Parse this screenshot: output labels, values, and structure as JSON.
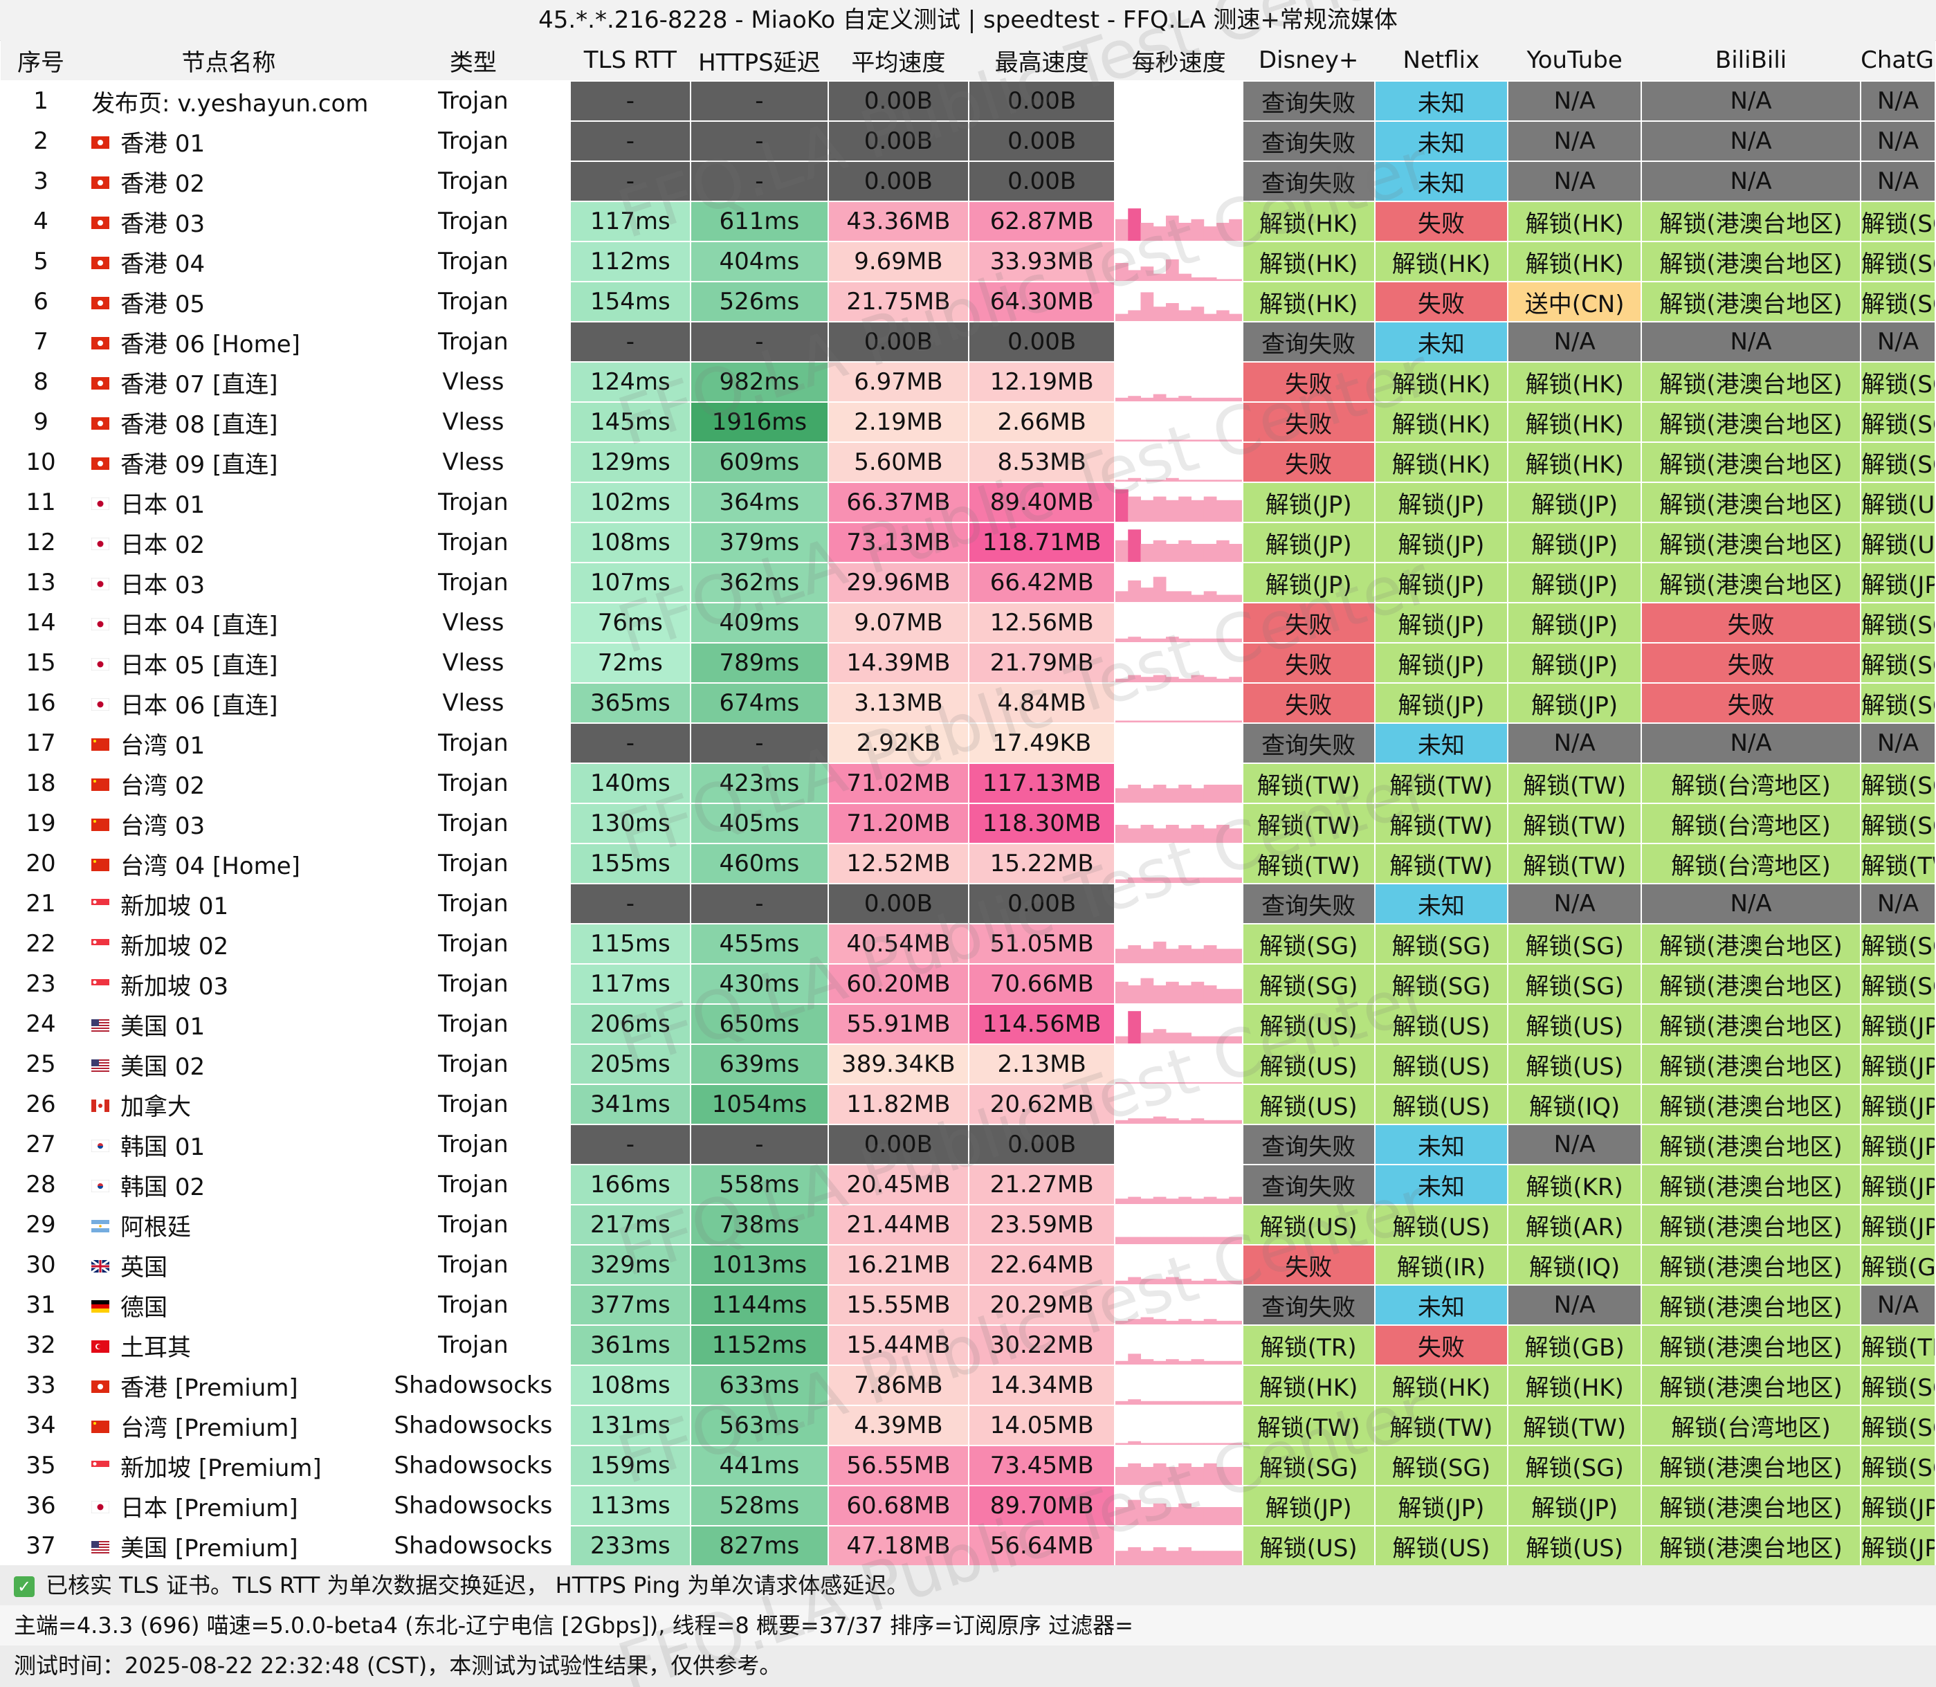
{
  "title": "45.*.*.216-8228 - MiaoKo 自定义测试 | speedtest - FFQ.LA 测速+常规流媒体",
  "watermark": "FFQ.LA Public Test Center",
  "columns": [
    "序号",
    "节点名称",
    "类型",
    "TLS RTT",
    "HTTPS延迟",
    "平均速度",
    "最高速度",
    "每秒速度",
    "Disney+",
    "Netflix",
    "YouTube",
    "BiliBili",
    "ChatGPT"
  ],
  "rows": [
    {
      "idx": "1",
      "flag": "none",
      "name": "发布页: v.yeshayun.com",
      "type": "Trojan",
      "tls": "-",
      "https": "-",
      "avg": "0.00B",
      "max": "0.00B",
      "spark": [],
      "disney": "查询失败",
      "netflix": "未知",
      "youtube": "N/A",
      "bili": "N/A",
      "gpt": "N/A"
    },
    {
      "idx": "2",
      "flag": "hk",
      "name": "香港 01",
      "type": "Trojan",
      "tls": "-",
      "https": "-",
      "avg": "0.00B",
      "max": "0.00B",
      "spark": [],
      "disney": "查询失败",
      "netflix": "未知",
      "youtube": "N/A",
      "bili": "N/A",
      "gpt": "N/A"
    },
    {
      "idx": "3",
      "flag": "hk",
      "name": "香港 02",
      "type": "Trojan",
      "tls": "-",
      "https": "-",
      "avg": "0.00B",
      "max": "0.00B",
      "spark": [],
      "disney": "查询失败",
      "netflix": "未知",
      "youtube": "N/A",
      "bili": "N/A",
      "gpt": "N/A"
    },
    {
      "idx": "4",
      "flag": "hk",
      "name": "香港 03",
      "type": "Trojan",
      "tls": "117ms",
      "https": "611ms",
      "avg": "43.36MB",
      "max": "62.87MB",
      "spark": [
        0.6,
        0.9,
        0.5,
        0.4,
        0.7,
        0.5,
        0.6,
        0.4,
        0.5,
        0.6
      ],
      "disney": "解锁(HK)",
      "netflix": "失败",
      "youtube": "解锁(HK)",
      "bili": "解锁(港澳台地区)",
      "gpt": "解锁(SG)"
    },
    {
      "idx": "5",
      "flag": "hk",
      "name": "香港 04",
      "type": "Trojan",
      "tls": "112ms",
      "https": "404ms",
      "avg": "9.69MB",
      "max": "33.93MB",
      "spark": [
        0.5,
        0.3,
        0.4,
        0.2,
        0.6,
        0.2,
        0.1,
        0.1,
        0.05,
        0.05
      ],
      "disney": "解锁(HK)",
      "netflix": "解锁(HK)",
      "youtube": "解锁(HK)",
      "bili": "解锁(港澳台地区)",
      "gpt": "解锁(SG)"
    },
    {
      "idx": "6",
      "flag": "hk",
      "name": "香港 05",
      "type": "Trojan",
      "tls": "154ms",
      "https": "526ms",
      "avg": "21.75MB",
      "max": "64.30MB",
      "spark": [
        0.2,
        0.3,
        0.8,
        0.4,
        0.5,
        0.3,
        0.4,
        0.2,
        0.3,
        0.2
      ],
      "disney": "解锁(HK)",
      "netflix": "失败",
      "youtube": "送中(CN)",
      "bili": "解锁(港澳台地区)",
      "gpt": "解锁(SG)"
    },
    {
      "idx": "7",
      "flag": "hk",
      "name": "香港 06 [Home]",
      "type": "Trojan",
      "tls": "-",
      "https": "-",
      "avg": "0.00B",
      "max": "0.00B",
      "spark": [],
      "disney": "查询失败",
      "netflix": "未知",
      "youtube": "N/A",
      "bili": "N/A",
      "gpt": "N/A"
    },
    {
      "idx": "8",
      "flag": "hk",
      "name": "香港 07 [直连]",
      "type": "Vless",
      "tls": "124ms",
      "https": "982ms",
      "avg": "6.97MB",
      "max": "12.19MB",
      "spark": [
        0.1,
        0.15,
        0.1,
        0.2,
        0.1,
        0.15,
        0.1,
        0.1,
        0.1,
        0.1
      ],
      "disney": "失败",
      "netflix": "解锁(HK)",
      "youtube": "解锁(HK)",
      "bili": "解锁(港澳台地区)",
      "gpt": "解锁(SG)"
    },
    {
      "idx": "9",
      "flag": "hk",
      "name": "香港 08 [直连]",
      "type": "Vless",
      "tls": "145ms",
      "https": "1916ms",
      "avg": "2.19MB",
      "max": "2.66MB",
      "spark": [
        0.05,
        0.05,
        0.05,
        0.05,
        0.05,
        0.05,
        0.05,
        0.05,
        0.05,
        0.05
      ],
      "disney": "失败",
      "netflix": "解锁(HK)",
      "youtube": "解锁(HK)",
      "bili": "解锁(港澳台地区)",
      "gpt": "解锁(SG)"
    },
    {
      "idx": "10",
      "flag": "hk",
      "name": "香港 09 [直连]",
      "type": "Vless",
      "tls": "129ms",
      "https": "609ms",
      "avg": "5.60MB",
      "max": "8.53MB",
      "spark": [
        0.05,
        0.1,
        0.05,
        0.05,
        0.1,
        0.05,
        0.05,
        0.05,
        0.05,
        0.05
      ],
      "disney": "失败",
      "netflix": "解锁(HK)",
      "youtube": "解锁(HK)",
      "bili": "解锁(港澳台地区)",
      "gpt": "解锁(SG)"
    },
    {
      "idx": "11",
      "flag": "jp",
      "name": "日本 01",
      "type": "Trojan",
      "tls": "102ms",
      "https": "364ms",
      "avg": "66.37MB",
      "max": "89.40MB",
      "spark": [
        0.9,
        0.7,
        0.6,
        0.7,
        0.6,
        0.7,
        0.6,
        0.7,
        0.6,
        0.6
      ],
      "disney": "解锁(JP)",
      "netflix": "解锁(JP)",
      "youtube": "解锁(JP)",
      "bili": "解锁(港澳台地区)",
      "gpt": "解锁(US)"
    },
    {
      "idx": "12",
      "flag": "jp",
      "name": "日本 02",
      "type": "Trojan",
      "tls": "108ms",
      "https": "379ms",
      "avg": "73.13MB",
      "max": "118.71MB",
      "spark": [
        0.6,
        0.9,
        0.5,
        0.6,
        0.5,
        0.6,
        0.5,
        0.5,
        0.6,
        0.5
      ],
      "disney": "解锁(JP)",
      "netflix": "解锁(JP)",
      "youtube": "解锁(JP)",
      "bili": "解锁(港澳台地区)",
      "gpt": "解锁(US)"
    },
    {
      "idx": "13",
      "flag": "jp",
      "name": "日本 03",
      "type": "Trojan",
      "tls": "107ms",
      "https": "362ms",
      "avg": "29.96MB",
      "max": "66.42MB",
      "spark": [
        0.3,
        0.6,
        0.4,
        0.7,
        0.3,
        0.3,
        0.2,
        0.3,
        0.2,
        0.2
      ],
      "disney": "解锁(JP)",
      "netflix": "解锁(JP)",
      "youtube": "解锁(JP)",
      "bili": "解锁(港澳台地区)",
      "gpt": "解锁(JP)"
    },
    {
      "idx": "14",
      "flag": "jp",
      "name": "日本 04 [直连]",
      "type": "Vless",
      "tls": "76ms",
      "https": "409ms",
      "avg": "9.07MB",
      "max": "12.56MB",
      "spark": [
        0.1,
        0.15,
        0.1,
        0.1,
        0.15,
        0.1,
        0.1,
        0.1,
        0.1,
        0.1
      ],
      "disney": "失败",
      "netflix": "解锁(JP)",
      "youtube": "解锁(JP)",
      "bili": "失败",
      "gpt": "解锁(SG)"
    },
    {
      "idx": "15",
      "flag": "jp",
      "name": "日本 05 [直连]",
      "type": "Vless",
      "tls": "72ms",
      "https": "789ms",
      "avg": "14.39MB",
      "max": "21.79MB",
      "spark": [
        0.1,
        0.2,
        0.15,
        0.2,
        0.15,
        0.1,
        0.2,
        0.15,
        0.1,
        0.15
      ],
      "disney": "失败",
      "netflix": "解锁(JP)",
      "youtube": "解锁(JP)",
      "bili": "失败",
      "gpt": "解锁(SG)"
    },
    {
      "idx": "16",
      "flag": "jp",
      "name": "日本 06 [直连]",
      "type": "Vless",
      "tls": "365ms",
      "https": "674ms",
      "avg": "3.13MB",
      "max": "4.84MB",
      "spark": [
        0.05,
        0.05,
        0.05,
        0.05,
        0.05,
        0.05,
        0.05,
        0.05,
        0.05,
        0.05
      ],
      "disney": "失败",
      "netflix": "解锁(JP)",
      "youtube": "解锁(JP)",
      "bili": "失败",
      "gpt": "解锁(SG)"
    },
    {
      "idx": "17",
      "flag": "tw",
      "name": "台湾 01",
      "type": "Trojan",
      "tls": "-",
      "https": "-",
      "avg": "2.92KB",
      "max": "17.49KB",
      "spark": [],
      "disney": "查询失败",
      "netflix": "未知",
      "youtube": "N/A",
      "bili": "N/A",
      "gpt": "N/A"
    },
    {
      "idx": "18",
      "flag": "tw",
      "name": "台湾 02",
      "type": "Trojan",
      "tls": "140ms",
      "https": "423ms",
      "avg": "71.02MB",
      "max": "117.13MB",
      "spark": [
        0.4,
        0.5,
        0.4,
        0.5,
        0.4,
        0.5,
        0.4,
        0.5,
        0.5,
        0.5
      ],
      "disney": "解锁(TW)",
      "netflix": "解锁(TW)",
      "youtube": "解锁(TW)",
      "bili": "解锁(台湾地区)",
      "gpt": "解锁(SG)"
    },
    {
      "idx": "19",
      "flag": "tw",
      "name": "台湾 03",
      "type": "Trojan",
      "tls": "130ms",
      "https": "405ms",
      "avg": "71.20MB",
      "max": "118.30MB",
      "spark": [
        0.5,
        0.4,
        0.5,
        0.4,
        0.5,
        0.4,
        0.5,
        0.4,
        0.5,
        0.4
      ],
      "disney": "解锁(TW)",
      "netflix": "解锁(TW)",
      "youtube": "解锁(TW)",
      "bili": "解锁(台湾地区)",
      "gpt": "解锁(SG)"
    },
    {
      "idx": "20",
      "flag": "tw",
      "name": "台湾 04 [Home]",
      "type": "Trojan",
      "tls": "155ms",
      "https": "460ms",
      "avg": "12.52MB",
      "max": "15.22MB",
      "spark": [
        0.1,
        0.15,
        0.15,
        0.15,
        0.15,
        0.15,
        0.15,
        0.15,
        0.15,
        0.15
      ],
      "disney": "解锁(TW)",
      "netflix": "解锁(TW)",
      "youtube": "解锁(TW)",
      "bili": "解锁(台湾地区)",
      "gpt": "解锁(TW)"
    },
    {
      "idx": "21",
      "flag": "sg",
      "name": "新加坡 01",
      "type": "Trojan",
      "tls": "-",
      "https": "-",
      "avg": "0.00B",
      "max": "0.00B",
      "spark": [],
      "disney": "查询失败",
      "netflix": "未知",
      "youtube": "N/A",
      "bili": "N/A",
      "gpt": "N/A"
    },
    {
      "idx": "22",
      "flag": "sg",
      "name": "新加坡 02",
      "type": "Trojan",
      "tls": "115ms",
      "https": "455ms",
      "avg": "40.54MB",
      "max": "51.05MB",
      "spark": [
        0.4,
        0.5,
        0.4,
        0.6,
        0.4,
        0.5,
        0.4,
        0.5,
        0.4,
        0.4
      ],
      "disney": "解锁(SG)",
      "netflix": "解锁(SG)",
      "youtube": "解锁(SG)",
      "bili": "解锁(港澳台地区)",
      "gpt": "解锁(SG)"
    },
    {
      "idx": "23",
      "flag": "sg",
      "name": "新加坡 03",
      "type": "Trojan",
      "tls": "117ms",
      "https": "430ms",
      "avg": "60.20MB",
      "max": "70.66MB",
      "spark": [
        0.6,
        0.5,
        0.7,
        0.5,
        0.6,
        0.5,
        0.6,
        0.5,
        0.4,
        0.4
      ],
      "disney": "解锁(SG)",
      "netflix": "解锁(SG)",
      "youtube": "解锁(SG)",
      "bili": "解锁(港澳台地区)",
      "gpt": "解锁(SG)"
    },
    {
      "idx": "24",
      "flag": "us",
      "name": "美国 01",
      "type": "Trojan",
      "tls": "206ms",
      "https": "650ms",
      "avg": "55.91MB",
      "max": "114.56MB",
      "spark": [
        0.2,
        0.9,
        0.3,
        0.4,
        0.3,
        0.3,
        0.2,
        0.2,
        0.2,
        0.2
      ],
      "disney": "解锁(US)",
      "netflix": "解锁(US)",
      "youtube": "解锁(US)",
      "bili": "解锁(港澳台地区)",
      "gpt": "解锁(JP)"
    },
    {
      "idx": "25",
      "flag": "us",
      "name": "美国 02",
      "type": "Trojan",
      "tls": "205ms",
      "https": "639ms",
      "avg": "389.34KB",
      "max": "2.13MB",
      "spark": [
        0.02,
        0.02,
        0.02,
        0.02,
        0.02,
        0.02,
        0.02,
        0.02,
        0.02,
        0.02
      ],
      "disney": "解锁(US)",
      "netflix": "解锁(US)",
      "youtube": "解锁(US)",
      "bili": "解锁(港澳台地区)",
      "gpt": "解锁(JP)"
    },
    {
      "idx": "26",
      "flag": "ca",
      "name": "加拿大",
      "type": "Trojan",
      "tls": "341ms",
      "https": "1054ms",
      "avg": "11.82MB",
      "max": "20.62MB",
      "spark": [
        0.1,
        0.15,
        0.15,
        0.2,
        0.15,
        0.1,
        0.15,
        0.1,
        0.1,
        0.1
      ],
      "disney": "解锁(US)",
      "netflix": "解锁(US)",
      "youtube": "解锁(IQ)",
      "bili": "解锁(港澳台地区)",
      "gpt": "解锁(JP)"
    },
    {
      "idx": "27",
      "flag": "kr",
      "name": "韩国 01",
      "type": "Trojan",
      "tls": "-",
      "https": "-",
      "avg": "0.00B",
      "max": "0.00B",
      "spark": [],
      "disney": "查询失败",
      "netflix": "未知",
      "youtube": "N/A",
      "bili": "解锁(港澳台地区)",
      "gpt": "解锁(JP)"
    },
    {
      "idx": "28",
      "flag": "kr",
      "name": "韩国 02",
      "type": "Trojan",
      "tls": "166ms",
      "https": "558ms",
      "avg": "20.45MB",
      "max": "21.27MB",
      "spark": [
        0.15,
        0.2,
        0.15,
        0.2,
        0.15,
        0.2,
        0.15,
        0.2,
        0.15,
        0.2
      ],
      "disney": "查询失败",
      "netflix": "未知",
      "youtube": "解锁(KR)",
      "bili": "解锁(港澳台地区)",
      "gpt": "解锁(JP)"
    },
    {
      "idx": "29",
      "flag": "ar",
      "name": "阿根廷",
      "type": "Trojan",
      "tls": "217ms",
      "https": "738ms",
      "avg": "21.44MB",
      "max": "23.59MB",
      "spark": [
        0.2,
        0.2,
        0.2,
        0.2,
        0.2,
        0.2,
        0.2,
        0.2,
        0.2,
        0.2
      ],
      "disney": "解锁(US)",
      "netflix": "解锁(US)",
      "youtube": "解锁(AR)",
      "bili": "解锁(港澳台地区)",
      "gpt": "解锁(JP)"
    },
    {
      "idx": "30",
      "flag": "gb",
      "name": "英国",
      "type": "Trojan",
      "tls": "329ms",
      "https": "1013ms",
      "avg": "16.21MB",
      "max": "22.64MB",
      "spark": [
        0.1,
        0.2,
        0.15,
        0.15,
        0.2,
        0.15,
        0.1,
        0.15,
        0.1,
        0.1
      ],
      "disney": "失败",
      "netflix": "解锁(IR)",
      "youtube": "解锁(IQ)",
      "bili": "解锁(港澳台地区)",
      "gpt": "解锁(GB)"
    },
    {
      "idx": "31",
      "flag": "de",
      "name": "德国",
      "type": "Trojan",
      "tls": "377ms",
      "https": "1144ms",
      "avg": "15.55MB",
      "max": "20.29MB",
      "spark": [
        0.1,
        0.15,
        0.2,
        0.15,
        0.1,
        0.15,
        0.1,
        0.15,
        0.1,
        0.1
      ],
      "disney": "查询失败",
      "netflix": "未知",
      "youtube": "N/A",
      "bili": "解锁(港澳台地区)",
      "gpt": "N/A"
    },
    {
      "idx": "32",
      "flag": "tr",
      "name": "土耳其",
      "type": "Trojan",
      "tls": "361ms",
      "https": "1152ms",
      "avg": "15.44MB",
      "max": "30.22MB",
      "spark": [
        0.1,
        0.3,
        0.15,
        0.1,
        0.15,
        0.1,
        0.15,
        0.1,
        0.1,
        0.1
      ],
      "disney": "解锁(TR)",
      "netflix": "失败",
      "youtube": "解锁(GB)",
      "bili": "解锁(港澳台地区)",
      "gpt": "解锁(TR)"
    },
    {
      "idx": "33",
      "flag": "hk",
      "name": "香港 [Premium]",
      "type": "Shadowsocks",
      "tls": "108ms",
      "https": "633ms",
      "avg": "7.86MB",
      "max": "14.34MB",
      "spark": [
        0.1,
        0.15,
        0.1,
        0.1,
        0.1,
        0.1,
        0.1,
        0.1,
        0.1,
        0.1
      ],
      "disney": "解锁(HK)",
      "netflix": "解锁(HK)",
      "youtube": "解锁(HK)",
      "bili": "解锁(港澳台地区)",
      "gpt": "解锁(SG)"
    },
    {
      "idx": "34",
      "flag": "tw",
      "name": "台湾 [Premium]",
      "type": "Shadowsocks",
      "tls": "131ms",
      "https": "563ms",
      "avg": "4.39MB",
      "max": "14.05MB",
      "spark": [
        0.05,
        0.1,
        0.05,
        0.05,
        0.05,
        0.05,
        0.05,
        0.05,
        0.05,
        0.05
      ],
      "disney": "解锁(TW)",
      "netflix": "解锁(TW)",
      "youtube": "解锁(TW)",
      "bili": "解锁(台湾地区)",
      "gpt": "解锁(SG)"
    },
    {
      "idx": "35",
      "flag": "sg",
      "name": "新加坡 [Premium]",
      "type": "Shadowsocks",
      "tls": "159ms",
      "https": "441ms",
      "avg": "56.55MB",
      "max": "73.45MB",
      "spark": [
        0.5,
        0.6,
        0.5,
        0.6,
        0.5,
        0.6,
        0.5,
        0.6,
        0.5,
        0.5
      ],
      "disney": "解锁(SG)",
      "netflix": "解锁(SG)",
      "youtube": "解锁(SG)",
      "bili": "解锁(港澳台地区)",
      "gpt": "解锁(SGP)"
    },
    {
      "idx": "36",
      "flag": "jp",
      "name": "日本 [Premium]",
      "type": "Shadowsocks",
      "tls": "113ms",
      "https": "528ms",
      "avg": "60.68MB",
      "max": "89.70MB",
      "spark": [
        0.5,
        0.7,
        0.5,
        0.6,
        0.5,
        0.6,
        0.5,
        0.5,
        0.5,
        0.5
      ],
      "disney": "解锁(JP)",
      "netflix": "解锁(JP)",
      "youtube": "解锁(JP)",
      "bili": "解锁(港澳台地区)",
      "gpt": "解锁(JP)"
    },
    {
      "idx": "37",
      "flag": "us",
      "name": "美国 [Premium]",
      "type": "Shadowsocks",
      "tls": "233ms",
      "https": "827ms",
      "avg": "47.18MB",
      "max": "56.64MB",
      "spark": [
        0.4,
        0.5,
        0.4,
        0.5,
        0.4,
        0.5,
        0.4,
        0.4,
        0.4,
        0.4
      ],
      "disney": "解锁(US)",
      "netflix": "解锁(US)",
      "youtube": "解锁(US)",
      "bili": "解锁(港澳台地区)",
      "gpt": "解锁(JP)"
    }
  ],
  "footer": {
    "check_icon": "checkbox-checked-icon",
    "tls_note": "已核实 TLS 证书。TLS RTT 为单次数据交换延迟， HTTPS Ping 为单次请求体感延迟。",
    "info": "主端=4.3.3 (696) 喵速=5.0.0-beta4 (东北-辽宁电信 [2Gbps]), 线程=8 概要=37/37 排序=订阅原序 过滤器=",
    "time": "测试时间：2025-08-22 22:32:48 (CST)，本测试为试验性结果，仅供参考。"
  },
  "colors": {
    "unlock": "#b5e37e",
    "fail": "#ec6e75",
    "query_fail": "#7a7a7a",
    "unknown": "#5fc9e6",
    "na": "#7a7a7a",
    "send_cn": "#fdd58a",
    "dash": "#5f5f5f",
    "spark": "#f7a4bd"
  }
}
